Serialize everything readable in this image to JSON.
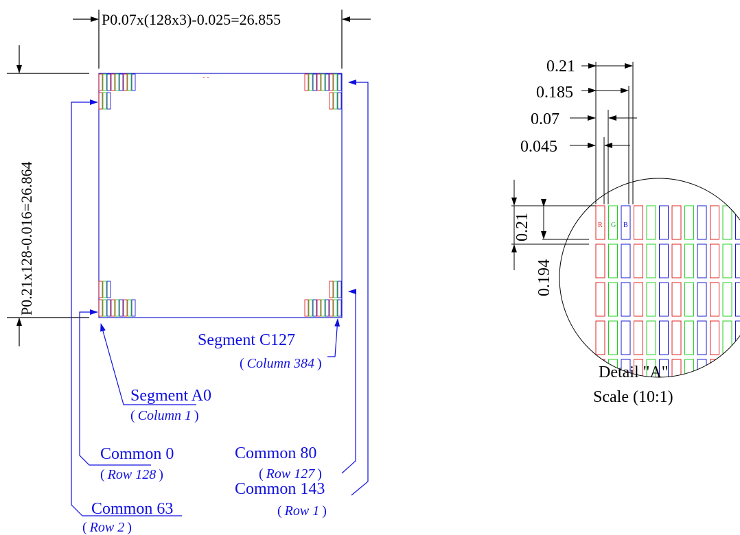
{
  "dimensions": {
    "width_label": "P0.07x(128x3)-0.025=26.855",
    "height_label": "P0.21x128-0.016=26.864"
  },
  "callouts": {
    "segment_c127": {
      "name": "Segment C127",
      "sub": "Column 384"
    },
    "segment_a0": {
      "name": "Segment A0",
      "sub": "Column 1"
    },
    "common_80": {
      "name": "Common 80",
      "sub": "Row 127"
    },
    "common_0": {
      "name": "Common 0",
      "sub": "Row 128"
    },
    "common_143": {
      "name": "Common 143",
      "sub": "Row 1"
    },
    "common_63": {
      "name": "Common 63",
      "sub": "Row 2"
    },
    "paren_open": "(",
    "paren_close": ")"
  },
  "detail": {
    "pitch_x": "0.21",
    "width_x": "0.185",
    "subpitch_x": "0.07",
    "subwidth_x": "0.045",
    "pitch_y": "0.21",
    "height_y": "0.194",
    "subpixel_labels": [
      "R",
      "G",
      "B"
    ],
    "caption": "Detail \"A\"",
    "scale": "Scale (10:1)"
  },
  "colors": {
    "red": "#e02020",
    "green": "#20d020",
    "blue": "#1a1ad0",
    "line": "#000000",
    "callout": "#1010e0"
  }
}
